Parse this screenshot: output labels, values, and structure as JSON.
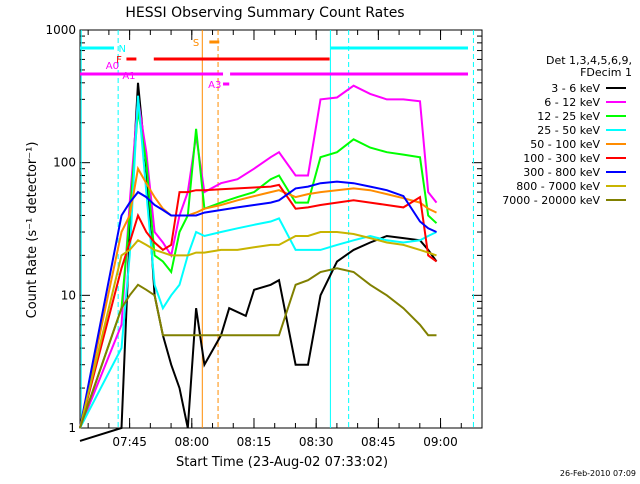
{
  "chart_data": {
    "type": "line",
    "title": "HESSI Observing Summary Count Rates",
    "xlabel": "Start Time (23-Aug-02 07:33:02)",
    "ylabel": "Count Rate (s⁻¹ detector⁻¹)",
    "yscale": "log",
    "ylim": [
      1,
      1000
    ],
    "xlim": [
      "07:33:02",
      "09:10:00"
    ],
    "x_ticks": [
      "07:45",
      "08:00",
      "08:15",
      "08:30",
      "08:45",
      "09:00"
    ],
    "y_ticks": [
      "1",
      "10",
      "100",
      "1000"
    ],
    "grid": false,
    "legend": {
      "header": [
        "Det 1,3,4,5,6,9,",
        "FDecim 1"
      ],
      "position": "right"
    },
    "footer_stamp": "26-Feb-2010 07:09",
    "flag_labels": [
      "N",
      "F",
      "A0",
      "A1",
      "S",
      "A3"
    ],
    "colors": {
      "flag_N": "#00ffff",
      "flag_F": "#ff0000",
      "flag_A": "#ff00ff",
      "flag_S": "#ff8c00"
    },
    "series": [
      {
        "name": "3 - 6 keV",
        "color": "#000000",
        "values": [
          [
            0,
            0.8
          ],
          [
            10,
            1
          ],
          [
            12,
            30
          ],
          [
            14,
            400
          ],
          [
            16,
            90
          ],
          [
            18,
            10
          ],
          [
            20,
            5
          ],
          [
            22,
            3
          ],
          [
            24,
            2
          ],
          [
            26,
            1
          ],
          [
            28,
            8
          ],
          [
            30,
            3
          ],
          [
            34,
            5
          ],
          [
            36,
            8
          ],
          [
            40,
            7
          ],
          [
            42,
            11
          ],
          [
            46,
            12
          ],
          [
            48,
            13
          ],
          [
            52,
            3
          ],
          [
            55,
            3
          ],
          [
            58,
            10
          ],
          [
            62,
            18
          ],
          [
            66,
            22
          ],
          [
            70,
            25
          ],
          [
            74,
            28
          ],
          [
            78,
            27
          ],
          [
            82,
            26
          ],
          [
            84,
            22
          ],
          [
            86,
            18
          ]
        ]
      },
      {
        "name": "6 - 12 keV",
        "color": "#ff00ff",
        "values": [
          [
            0,
            1
          ],
          [
            10,
            6
          ],
          [
            12,
            50
          ],
          [
            14,
            300
          ],
          [
            16,
            120
          ],
          [
            18,
            30
          ],
          [
            20,
            25
          ],
          [
            22,
            20
          ],
          [
            24,
            40
          ],
          [
            26,
            60
          ],
          [
            28,
            160
          ],
          [
            30,
            60
          ],
          [
            34,
            70
          ],
          [
            38,
            75
          ],
          [
            42,
            90
          ],
          [
            46,
            110
          ],
          [
            48,
            120
          ],
          [
            52,
            80
          ],
          [
            55,
            80
          ],
          [
            58,
            300
          ],
          [
            62,
            310
          ],
          [
            66,
            380
          ],
          [
            70,
            330
          ],
          [
            74,
            300
          ],
          [
            78,
            300
          ],
          [
            82,
            290
          ],
          [
            84,
            60
          ],
          [
            86,
            50
          ]
        ]
      },
      {
        "name": "12 - 25 keV",
        "color": "#00ff00",
        "values": [
          [
            0,
            1
          ],
          [
            10,
            8
          ],
          [
            12,
            40
          ],
          [
            14,
            250
          ],
          [
            16,
            100
          ],
          [
            18,
            20
          ],
          [
            20,
            18
          ],
          [
            22,
            15
          ],
          [
            24,
            30
          ],
          [
            26,
            40
          ],
          [
            28,
            180
          ],
          [
            30,
            45
          ],
          [
            34,
            50
          ],
          [
            38,
            55
          ],
          [
            42,
            60
          ],
          [
            46,
            75
          ],
          [
            48,
            80
          ],
          [
            52,
            50
          ],
          [
            55,
            50
          ],
          [
            58,
            110
          ],
          [
            62,
            120
          ],
          [
            66,
            150
          ],
          [
            70,
            130
          ],
          [
            74,
            120
          ],
          [
            78,
            115
          ],
          [
            82,
            110
          ],
          [
            84,
            40
          ],
          [
            86,
            35
          ]
        ]
      },
      {
        "name": "25 - 50 keV",
        "color": "#00ffff",
        "values": [
          [
            0,
            1
          ],
          [
            10,
            4
          ],
          [
            12,
            20
          ],
          [
            14,
            320
          ],
          [
            16,
            60
          ],
          [
            18,
            12
          ],
          [
            20,
            8
          ],
          [
            22,
            10
          ],
          [
            24,
            12
          ],
          [
            26,
            20
          ],
          [
            28,
            30
          ],
          [
            30,
            28
          ],
          [
            34,
            30
          ],
          [
            38,
            32
          ],
          [
            42,
            34
          ],
          [
            46,
            36
          ],
          [
            48,
            38
          ],
          [
            52,
            22
          ],
          [
            55,
            22
          ],
          [
            58,
            22
          ],
          [
            62,
            24
          ],
          [
            66,
            26
          ],
          [
            70,
            28
          ],
          [
            74,
            26
          ],
          [
            78,
            25
          ],
          [
            82,
            26
          ],
          [
            84,
            28
          ],
          [
            86,
            30
          ]
        ]
      },
      {
        "name": "50 - 100 keV",
        "color": "#ff8c00",
        "values": [
          [
            0,
            1
          ],
          [
            10,
            30
          ],
          [
            12,
            40
          ],
          [
            14,
            90
          ],
          [
            16,
            70
          ],
          [
            18,
            55
          ],
          [
            20,
            45
          ],
          [
            22,
            40
          ],
          [
            24,
            40
          ],
          [
            26,
            40
          ],
          [
            28,
            42
          ],
          [
            30,
            45
          ],
          [
            34,
            48
          ],
          [
            38,
            52
          ],
          [
            42,
            56
          ],
          [
            46,
            60
          ],
          [
            48,
            62
          ],
          [
            52,
            55
          ],
          [
            55,
            58
          ],
          [
            58,
            60
          ],
          [
            62,
            62
          ],
          [
            66,
            64
          ],
          [
            70,
            62
          ],
          [
            74,
            58
          ],
          [
            78,
            54
          ],
          [
            82,
            50
          ],
          [
            84,
            45
          ],
          [
            86,
            42
          ]
        ]
      },
      {
        "name": "100 - 300 keV",
        "color": "#ff0000",
        "values": [
          [
            0,
            1
          ],
          [
            10,
            16
          ],
          [
            12,
            25
          ],
          [
            14,
            40
          ],
          [
            16,
            30
          ],
          [
            18,
            25
          ],
          [
            20,
            22
          ],
          [
            22,
            24
          ],
          [
            24,
            60
          ],
          [
            26,
            60
          ],
          [
            28,
            62
          ],
          [
            30,
            62
          ],
          [
            34,
            63
          ],
          [
            38,
            64
          ],
          [
            42,
            65
          ],
          [
            46,
            66
          ],
          [
            48,
            68
          ],
          [
            52,
            45
          ],
          [
            55,
            46
          ],
          [
            58,
            48
          ],
          [
            62,
            50
          ],
          [
            66,
            52
          ],
          [
            70,
            50
          ],
          [
            74,
            48
          ],
          [
            78,
            46
          ],
          [
            82,
            55
          ],
          [
            84,
            20
          ],
          [
            86,
            18
          ]
        ]
      },
      {
        "name": "300 - 800 keV",
        "color": "#0000ff",
        "values": [
          [
            0,
            1
          ],
          [
            10,
            40
          ],
          [
            12,
            50
          ],
          [
            14,
            60
          ],
          [
            16,
            55
          ],
          [
            18,
            48
          ],
          [
            20,
            44
          ],
          [
            22,
            40
          ],
          [
            24,
            40
          ],
          [
            26,
            40
          ],
          [
            28,
            40
          ],
          [
            30,
            42
          ],
          [
            34,
            44
          ],
          [
            38,
            46
          ],
          [
            42,
            48
          ],
          [
            46,
            50
          ],
          [
            48,
            52
          ],
          [
            52,
            64
          ],
          [
            55,
            66
          ],
          [
            58,
            70
          ],
          [
            62,
            72
          ],
          [
            66,
            70
          ],
          [
            70,
            66
          ],
          [
            74,
            62
          ],
          [
            78,
            56
          ],
          [
            82,
            36
          ],
          [
            84,
            32
          ],
          [
            86,
            30
          ]
        ]
      },
      {
        "name": "800 - 7000 keV",
        "color": "#c8b400",
        "values": [
          [
            0,
            1
          ],
          [
            10,
            20
          ],
          [
            12,
            22
          ],
          [
            14,
            26
          ],
          [
            16,
            24
          ],
          [
            18,
            22
          ],
          [
            20,
            21
          ],
          [
            22,
            20
          ],
          [
            24,
            20
          ],
          [
            26,
            20
          ],
          [
            28,
            21
          ],
          [
            30,
            21
          ],
          [
            34,
            22
          ],
          [
            38,
            22
          ],
          [
            42,
            23
          ],
          [
            46,
            24
          ],
          [
            48,
            24
          ],
          [
            52,
            28
          ],
          [
            55,
            28
          ],
          [
            58,
            30
          ],
          [
            62,
            30
          ],
          [
            66,
            29
          ],
          [
            70,
            27
          ],
          [
            74,
            25
          ],
          [
            78,
            24
          ],
          [
            82,
            22
          ],
          [
            84,
            21
          ],
          [
            86,
            20
          ]
        ]
      },
      {
        "name": "7000 - 20000 keV",
        "color": "#808000",
        "values": [
          [
            0,
            1
          ],
          [
            10,
            8
          ],
          [
            12,
            10
          ],
          [
            14,
            12
          ],
          [
            16,
            11
          ],
          [
            18,
            10
          ],
          [
            20,
            5
          ],
          [
            22,
            5
          ],
          [
            24,
            5
          ],
          [
            26,
            5
          ],
          [
            28,
            5
          ],
          [
            30,
            5
          ],
          [
            34,
            5
          ],
          [
            38,
            5
          ],
          [
            42,
            5
          ],
          [
            46,
            5
          ],
          [
            48,
            5
          ],
          [
            52,
            12
          ],
          [
            55,
            13
          ],
          [
            58,
            15
          ],
          [
            62,
            16
          ],
          [
            66,
            15
          ],
          [
            70,
            12
          ],
          [
            74,
            10
          ],
          [
            78,
            8
          ],
          [
            82,
            6
          ],
          [
            84,
            5
          ],
          [
            86,
            5
          ]
        ]
      }
    ]
  }
}
